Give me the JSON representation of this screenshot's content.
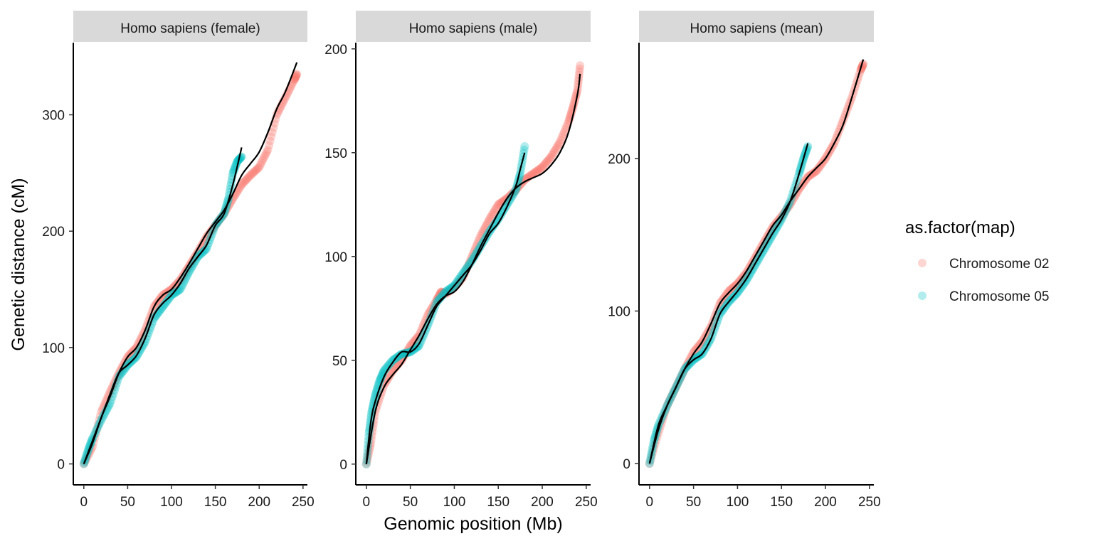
{
  "chart_data": {
    "type": "scatter",
    "xlabel": "Genomic position (Mb)",
    "ylabel": "Genetic distance (cM)",
    "legend": {
      "title": "as.factor(map)",
      "placement": "right",
      "entries": [
        "Chromosome 02",
        "Chromosome 05"
      ]
    },
    "colors": {
      "Chromosome 02": "#F8766D",
      "Chromosome 05": "#00BFC4",
      "smooth": "#000000",
      "strip_bg": "#D9D9D9"
    },
    "grid": false,
    "panels": [
      {
        "strip": "Homo sapiens (female)",
        "xlim": [
          -12,
          255
        ],
        "ylim": [
          -18,
          362
        ],
        "xticks": [
          0,
          50,
          100,
          150,
          200,
          250
        ],
        "yticks": [
          0,
          100,
          200,
          300
        ],
        "series": [
          {
            "name": "Chromosome 02",
            "x": [
              0,
              10,
              20,
              30,
              40,
              50,
              60,
              70,
              80,
              90,
              100,
              110,
              120,
              130,
              140,
              150,
              160,
              170,
              180,
              190,
              200,
              210,
              220,
              230,
              240,
              243
            ],
            "y": [
              0,
              15,
              45,
              62,
              78,
              92,
              100,
              115,
              135,
              145,
              150,
              158,
              170,
              182,
              195,
              205,
              215,
              228,
              240,
              248,
              255,
              270,
              300,
              315,
              330,
              335
            ]
          },
          {
            "name": "Chromosome 05",
            "x": [
              0,
              5,
              10,
              20,
              30,
              40,
              50,
              60,
              70,
              80,
              90,
              100,
              110,
              120,
              130,
              140,
              150,
              160,
              165,
              170,
              175,
              180
            ],
            "y": [
              0,
              12,
              22,
              38,
              52,
              75,
              85,
              92,
              105,
              125,
              135,
              145,
              150,
              165,
              178,
              185,
              205,
              215,
              228,
              250,
              260,
              264
            ]
          }
        ],
        "smooth": [
          {
            "name": "Chromosome 02",
            "x": [
              0,
              10,
              20,
              30,
              40,
              50,
              60,
              70,
              80,
              90,
              100,
              110,
              120,
              130,
              140,
              150,
              160,
              170,
              180,
              190,
              200,
              210,
              220,
              230,
              243
            ],
            "y": [
              0,
              18,
              40,
              58,
              78,
              92,
              100,
              115,
              135,
              145,
              150,
              160,
              172,
              185,
              198,
              208,
              218,
              232,
              248,
              258,
              268,
              285,
              305,
              320,
              345
            ]
          },
          {
            "name": "Chromosome 05",
            "x": [
              0,
              10,
              20,
              30,
              40,
              50,
              60,
              70,
              80,
              90,
              100,
              110,
              120,
              130,
              140,
              150,
              160,
              170,
              180
            ],
            "y": [
              0,
              20,
              40,
              60,
              78,
              85,
              93,
              108,
              128,
              138,
              145,
              155,
              168,
              178,
              188,
              205,
              215,
              240,
              272
            ]
          }
        ]
      },
      {
        "strip": "Homo sapiens (male)",
        "xlim": [
          -12,
          255
        ],
        "ylim": [
          -10,
          203
        ],
        "xticks": [
          0,
          50,
          100,
          150,
          200,
          250
        ],
        "yticks": [
          0,
          50,
          100,
          150,
          200
        ],
        "series": [
          {
            "name": "Chromosome 02",
            "x": [
              0,
              5,
              10,
              20,
              30,
              40,
              50,
              60,
              70,
              80,
              85,
              90,
              100,
              110,
              120,
              130,
              140,
              150,
              160,
              170,
              180,
              190,
              200,
              210,
              220,
              230,
              235,
              240,
              243
            ],
            "y": [
              0,
              10,
              25,
              38,
              45,
              50,
              57,
              62,
              72,
              79,
              83,
              82,
              85,
              90,
              100,
              110,
              118,
              125,
              128,
              132,
              137,
              140,
              143,
              148,
              155,
              165,
              172,
              180,
              192
            ]
          },
          {
            "name": "Chromosome 05",
            "x": [
              0,
              3,
              6,
              10,
              15,
              20,
              30,
              40,
              50,
              60,
              70,
              80,
              90,
              100,
              110,
              120,
              130,
              140,
              150,
              160,
              170,
              175,
              180
            ],
            "y": [
              0,
              15,
              25,
              33,
              40,
              45,
              50,
              53,
              54,
              57,
              67,
              78,
              83,
              86,
              92,
              98,
              105,
              112,
              118,
              125,
              132,
              140,
              153
            ]
          }
        ],
        "smooth": [
          {
            "name": "Chromosome 02",
            "x": [
              0,
              10,
              20,
              30,
              40,
              50,
              60,
              70,
              80,
              90,
              100,
              110,
              120,
              130,
              140,
              150,
              160,
              170,
              180,
              190,
              200,
              210,
              220,
              230,
              240,
              243
            ],
            "y": [
              0,
              25,
              37,
              43,
              48,
              55,
              62,
              70,
              77,
              81,
              83,
              88,
              96,
              105,
              113,
              121,
              128,
              133,
              136,
              138,
              140,
              144,
              150,
              160,
              178,
              188
            ]
          },
          {
            "name": "Chromosome 05",
            "x": [
              0,
              5,
              10,
              20,
              30,
              40,
              50,
              60,
              70,
              80,
              90,
              100,
              110,
              120,
              130,
              140,
              150,
              160,
              170,
              175,
              180
            ],
            "y": [
              0,
              20,
              30,
              42,
              49,
              54,
              54,
              58,
              67,
              76,
              81,
              86,
              91,
              96,
              103,
              111,
              116,
              124,
              134,
              142,
              150
            ]
          }
        ]
      },
      {
        "strip": "Homo sapiens (mean)",
        "xlim": [
          -12,
          255
        ],
        "ylim": [
          -14,
          276
        ],
        "xticks": [
          0,
          50,
          100,
          150,
          200,
          250
        ],
        "yticks": [
          0,
          100,
          200
        ],
        "series": [
          {
            "name": "Chromosome 02",
            "x": [
              0,
              10,
              20,
              30,
              40,
              50,
              60,
              70,
              80,
              90,
              100,
              110,
              120,
              130,
              140,
              150,
              160,
              170,
              180,
              190,
              200,
              210,
              220,
              230,
              240,
              243
            ],
            "y": [
              0,
              20,
              38,
              50,
              62,
              73,
              80,
              90,
              105,
              113,
              118,
              125,
              135,
              145,
              155,
              162,
              170,
              180,
              188,
              192,
              200,
              210,
              225,
              240,
              258,
              262
            ]
          },
          {
            "name": "Chromosome 05",
            "x": [
              0,
              5,
              10,
              20,
              30,
              40,
              50,
              60,
              70,
              80,
              90,
              100,
              110,
              120,
              130,
              140,
              150,
              160,
              170,
              175,
              180
            ],
            "y": [
              0,
              15,
              25,
              38,
              50,
              62,
              68,
              72,
              82,
              98,
              106,
              112,
              120,
              130,
              140,
              150,
              160,
              172,
              190,
              200,
              208
            ]
          }
        ],
        "smooth": [
          {
            "name": "Chromosome 02",
            "x": [
              0,
              10,
              20,
              30,
              40,
              50,
              60,
              70,
              80,
              90,
              100,
              110,
              120,
              130,
              140,
              150,
              160,
              170,
              180,
              190,
              200,
              210,
              220,
              230,
              243
            ],
            "y": [
              0,
              22,
              38,
              50,
              62,
              72,
              80,
              92,
              105,
              112,
              118,
              126,
              136,
              146,
              156,
              163,
              172,
              180,
              188,
              194,
              200,
              210,
              222,
              240,
              265
            ]
          },
          {
            "name": "Chromosome 05",
            "x": [
              0,
              10,
              20,
              30,
              40,
              50,
              60,
              70,
              80,
              90,
              100,
              110,
              120,
              130,
              140,
              150,
              160,
              170,
              180
            ],
            "y": [
              0,
              25,
              38,
              50,
              62,
              68,
              72,
              82,
              98,
              106,
              113,
              121,
              131,
              141,
              151,
              160,
              172,
              190,
              210
            ]
          }
        ]
      }
    ]
  }
}
